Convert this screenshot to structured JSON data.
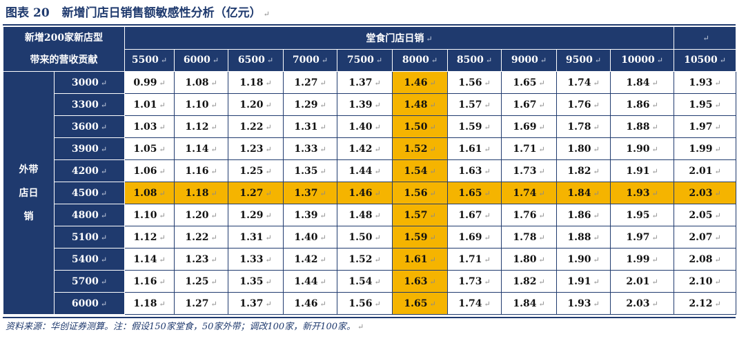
{
  "title": {
    "label": "图表",
    "number": "20",
    "text": "新增门店日销售额敏感性分析（亿元）"
  },
  "corner": {
    "line1": "新增200家新店型",
    "line2": "带来的营收贡献"
  },
  "column_group_label": "堂食门店日销",
  "row_group_label": {
    "line1": "外带",
    "line2": "店日",
    "line3": "销"
  },
  "columns": [
    "5500",
    "6000",
    "6500",
    "7000",
    "7500",
    "8000",
    "8500",
    "9000",
    "9500",
    "10000",
    "10500"
  ],
  "rows": [
    {
      "label": "3000",
      "values": [
        "0.99",
        "1.08",
        "1.18",
        "1.27",
        "1.37",
        "1.46",
        "1.56",
        "1.65",
        "1.74",
        "1.84",
        "1.93"
      ]
    },
    {
      "label": "3300",
      "values": [
        "1.01",
        "1.10",
        "1.20",
        "1.29",
        "1.39",
        "1.48",
        "1.57",
        "1.67",
        "1.76",
        "1.86",
        "1.95"
      ]
    },
    {
      "label": "3600",
      "values": [
        "1.03",
        "1.12",
        "1.22",
        "1.31",
        "1.40",
        "1.50",
        "1.59",
        "1.69",
        "1.78",
        "1.88",
        "1.97"
      ]
    },
    {
      "label": "3900",
      "values": [
        "1.05",
        "1.14",
        "1.23",
        "1.33",
        "1.42",
        "1.52",
        "1.61",
        "1.71",
        "1.80",
        "1.90",
        "1.99"
      ]
    },
    {
      "label": "4200",
      "values": [
        "1.06",
        "1.16",
        "1.25",
        "1.35",
        "1.44",
        "1.54",
        "1.63",
        "1.73",
        "1.82",
        "1.91",
        "2.01"
      ]
    },
    {
      "label": "4500",
      "values": [
        "1.08",
        "1.18",
        "1.27",
        "1.37",
        "1.46",
        "1.56",
        "1.65",
        "1.74",
        "1.84",
        "1.93",
        "2.03"
      ]
    },
    {
      "label": "4800",
      "values": [
        "1.10",
        "1.20",
        "1.29",
        "1.39",
        "1.48",
        "1.57",
        "1.67",
        "1.76",
        "1.86",
        "1.95",
        "2.05"
      ]
    },
    {
      "label": "5100",
      "values": [
        "1.12",
        "1.22",
        "1.31",
        "1.40",
        "1.50",
        "1.59",
        "1.69",
        "1.78",
        "1.88",
        "1.97",
        "2.07"
      ]
    },
    {
      "label": "5400",
      "values": [
        "1.14",
        "1.23",
        "1.33",
        "1.42",
        "1.52",
        "1.61",
        "1.71",
        "1.80",
        "1.90",
        "1.99",
        "2.08"
      ]
    },
    {
      "label": "5700",
      "values": [
        "1.16",
        "1.25",
        "1.35",
        "1.44",
        "1.54",
        "1.63",
        "1.73",
        "1.82",
        "1.91",
        "2.01",
        "2.10"
      ]
    },
    {
      "label": "6000",
      "values": [
        "1.18",
        "1.27",
        "1.37",
        "1.46",
        "1.56",
        "1.65",
        "1.74",
        "1.84",
        "1.93",
        "2.03",
        "2.12"
      ]
    }
  ],
  "highlight": {
    "row_label": "4500",
    "column_label": "8000",
    "color": "#f5b400"
  },
  "colors": {
    "header_bg": "#1f3a6e",
    "cell_bg": "#ffffff"
  },
  "footer": "资料来源：华创证券测算。注：假设150家堂食，50家外带；调改100家，新开100家。"
}
